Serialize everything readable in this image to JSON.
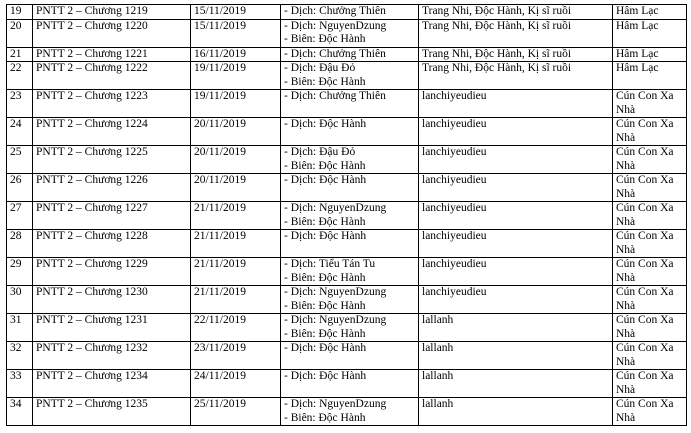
{
  "table": {
    "rows": [
      [
        "19",
        "PNTT 2 – Chương 1219",
        "15/11/2019",
        [
          "- Dịch: Chưởng Thiên"
        ],
        "Trang Nhi, Độc Hành, Kị sĩ ruồi",
        "Hâm Lạc"
      ],
      [
        "20",
        "PNTT 2 – Chương 1220",
        "15/11/2019",
        [
          "- Dịch: NguyenDzung",
          "- Biên: Độc Hành"
        ],
        "Trang Nhi, Độc Hành, Kị sĩ ruồi",
        "Hâm Lạc"
      ],
      [
        "21",
        "PNTT 2 – Chương 1221",
        "16/11/2019",
        [
          "- Dịch: Chưởng Thiên"
        ],
        "Trang Nhi, Độc Hành, Kị sĩ ruồi",
        "Hâm Lạc"
      ],
      [
        "22",
        "PNTT 2 – Chương 1222",
        "19/11/2019",
        [
          "- Dịch: Đậu Đỏ",
          "- Biên: Độc Hành"
        ],
        "Trang Nhi, Độc Hành, Kị sĩ ruồi",
        "Hâm Lạc"
      ],
      [
        "23",
        "PNTT 2 – Chương 1223",
        "19/11/2019",
        [
          "- Dịch: Chưởng Thiên"
        ],
        "lanchiyeudieu",
        "Cún Con Xa Nhà"
      ],
      [
        "24",
        "PNTT 2 – Chương 1224",
        "20/11/2019",
        [
          "- Dịch: Độc Hành"
        ],
        "lanchiyeudieu",
        "Cún Con Xa Nhà"
      ],
      [
        "25",
        "PNTT 2 – Chương 1225",
        "20/11/2019",
        [
          "- Dịch: Đậu Đỏ",
          "- Biên: Độc Hành"
        ],
        "lanchiyeudieu",
        "Cún Con Xa Nhà"
      ],
      [
        "26",
        "PNTT 2 – Chương 1226",
        "20/11/2019",
        [
          "- Dịch: Độc Hành"
        ],
        "lanchiyeudieu",
        "Cún Con Xa Nhà"
      ],
      [
        "27",
        "PNTT 2 – Chương 1227",
        "21/11/2019",
        [
          "- Dịch: NguyenDzung",
          "- Biên: Độc Hành"
        ],
        "lanchiyeudieu",
        "Cún Con Xa Nhà"
      ],
      [
        "28",
        "PNTT 2 – Chương 1228",
        "21/11/2019",
        [
          "- Dịch: Độc Hành"
        ],
        "lanchiyeudieu",
        "Cún Con Xa Nhà"
      ],
      [
        "29",
        "PNTT 2 – Chương 1229",
        "21/11/2019",
        [
          "- Dịch: Tiểu Tán Tu",
          "- Biên: Độc Hành"
        ],
        "lanchiyeudieu",
        "Cún Con Xa Nhà"
      ],
      [
        "30",
        "PNTT 2 – Chương 1230",
        "21/11/2019",
        [
          "- Dịch: NguyenDzung",
          "- Biên: Độc Hành"
        ],
        "lanchiyeudieu",
        "Cún Con Xa Nhà"
      ],
      [
        "31",
        "PNTT 2 – Chương 1231",
        "22/11/2019",
        [
          "- Dịch: NguyenDzung",
          "- Biên: Độc Hành"
        ],
        "lallanh",
        "Cún Con Xa Nhà"
      ],
      [
        "32",
        "PNTT 2 – Chương 1232",
        "23/11/2019",
        [
          "- Dịch: Độc Hành"
        ],
        "lallanh",
        "Cún Con Xa Nhà"
      ],
      [
        "33",
        "PNTT 2 – Chương 1234",
        "24/11/2019",
        [
          "- Dịch: Độc Hành"
        ],
        "lallanh",
        "Cún Con Xa Nhà"
      ],
      [
        "34",
        "PNTT 2 – Chương 1235",
        "25/11/2019",
        [
          "- Dịch: NguyenDzung",
          "- Biên: Độc Hành"
        ],
        "lallanh",
        "Cún Con Xa Nhà"
      ]
    ]
  }
}
